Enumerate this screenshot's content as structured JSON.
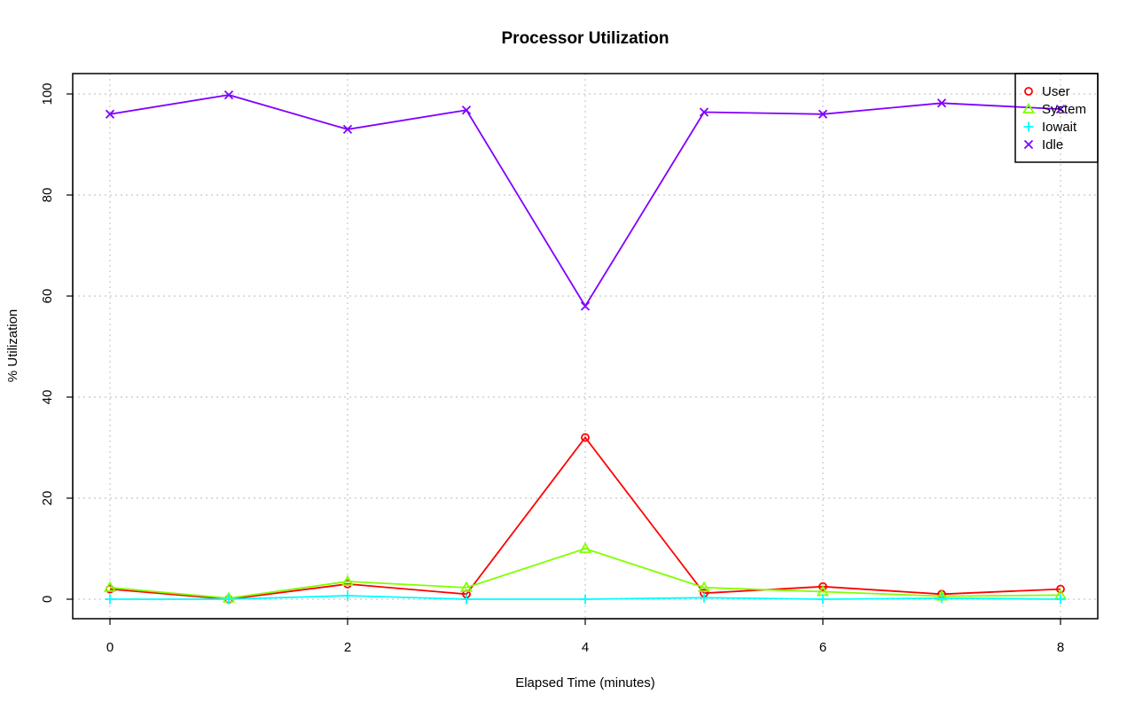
{
  "chart_data": {
    "type": "line",
    "title": "Processor Utilization",
    "xlabel": "Elapsed Time (minutes)",
    "ylabel": "% Utilization",
    "x": [
      0,
      1,
      2,
      3,
      4,
      5,
      6,
      7,
      8
    ],
    "xlim": [
      0,
      8
    ],
    "ylim": [
      0,
      100
    ],
    "x_ticks": [
      0,
      2,
      4,
      6,
      8
    ],
    "y_ticks": [
      0,
      20,
      40,
      60,
      80,
      100
    ],
    "grid": true,
    "legend_position": "top-right",
    "series": [
      {
        "name": "User",
        "color": "#ff0000",
        "marker": "circle",
        "values": [
          2,
          0,
          3,
          1,
          32,
          1.2,
          2.5,
          1,
          2
        ]
      },
      {
        "name": "System",
        "color": "#80ff00",
        "marker": "triangle",
        "values": [
          2.3,
          0.2,
          3.5,
          2.3,
          10,
          2.3,
          1.5,
          0.6,
          0.8
        ]
      },
      {
        "name": "Iowait",
        "color": "#00ffff",
        "marker": "plus",
        "values": [
          0,
          0,
          0.7,
          0,
          0,
          0.3,
          0,
          0.2,
          0
        ]
      },
      {
        "name": "Idle",
        "color": "#8000ff",
        "marker": "cross",
        "values": [
          96,
          99.8,
          93,
          96.8,
          58,
          96.4,
          96,
          98.2,
          97
        ]
      }
    ]
  }
}
